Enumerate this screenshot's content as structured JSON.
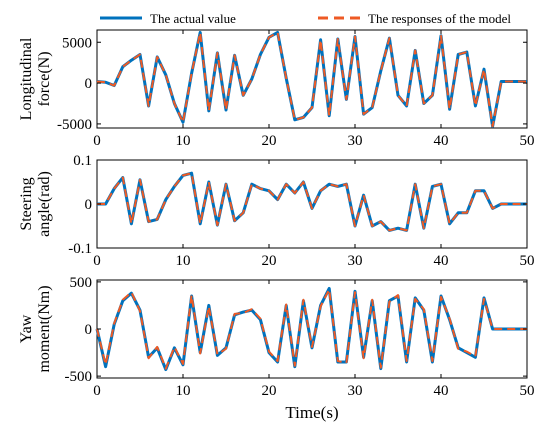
{
  "colors": {
    "actual": "#0072BD",
    "model": "#EE5A24",
    "axis": "#000000"
  },
  "legend": {
    "actual_label": "The actual value",
    "model_label": "The responses of the model",
    "placement": "top"
  },
  "xlabel": "Time(s)",
  "chart_data": [
    {
      "type": "line",
      "ylabel_lines": [
        "Longitudinal",
        "force(N)"
      ],
      "xlim": [
        0,
        50
      ],
      "ylim": [
        -5500,
        6500
      ],
      "xticks": [
        "0",
        "10",
        "20",
        "30",
        "40",
        "50"
      ],
      "yticks": [
        "5000",
        "0",
        "-5000"
      ],
      "ytick_values": [
        5000,
        0,
        -5000
      ],
      "series": [
        {
          "name": "The actual value",
          "x": [
            0,
            1,
            2,
            3,
            4,
            5,
            6,
            7,
            8,
            9,
            10,
            11,
            12,
            13,
            14,
            15,
            16,
            17,
            18,
            19,
            20,
            21,
            22,
            23,
            24,
            25,
            26,
            27,
            28,
            29,
            30,
            31,
            32,
            33,
            34,
            35,
            36,
            37,
            38,
            39,
            40,
            41,
            42,
            43,
            44,
            45,
            46,
            47,
            48,
            49,
            50
          ],
          "y": [
            200,
            100,
            -300,
            2000,
            2800,
            3500,
            -2800,
            3200,
            1000,
            -2500,
            -4800,
            1200,
            6200,
            -3400,
            3700,
            -3300,
            3400,
            -1500,
            500,
            3500,
            5600,
            6200,
            600,
            -4500,
            -4200,
            -3000,
            5300,
            -4000,
            5400,
            -2000,
            5700,
            -3800,
            -3000,
            1500,
            5500,
            -1500,
            -2800,
            4000,
            -2500,
            -1500,
            5800,
            -3200,
            3500,
            3800,
            -2800,
            1700,
            -5300,
            200,
            200,
            200,
            200
          ]
        },
        {
          "name": "The responses of the model",
          "x": [
            0,
            1,
            2,
            3,
            4,
            5,
            6,
            7,
            8,
            9,
            10,
            11,
            12,
            13,
            14,
            15,
            16,
            17,
            18,
            19,
            20,
            21,
            22,
            23,
            24,
            25,
            26,
            27,
            28,
            29,
            30,
            31,
            32,
            33,
            34,
            35,
            36,
            37,
            38,
            39,
            40,
            41,
            42,
            43,
            44,
            45,
            46,
            47,
            48,
            49,
            50
          ],
          "y": [
            200,
            100,
            -300,
            2000,
            2800,
            3500,
            -2800,
            3200,
            1000,
            -2500,
            -4800,
            1200,
            6200,
            -3400,
            3700,
            -3300,
            3400,
            -1500,
            500,
            3500,
            5600,
            6200,
            600,
            -4500,
            -4200,
            -3000,
            5300,
            -4000,
            5400,
            -2000,
            5700,
            -3800,
            -3000,
            1500,
            5500,
            -1500,
            -2800,
            4000,
            -2500,
            -1500,
            5800,
            -3200,
            3500,
            3800,
            -2800,
            1700,
            -5300,
            200,
            200,
            200,
            200
          ]
        }
      ]
    },
    {
      "type": "line",
      "ylabel_lines": [
        "Steering",
        "angle(rad)"
      ],
      "xlim": [
        0,
        50
      ],
      "ylim": [
        -0.1,
        0.1
      ],
      "xticks": [
        "0",
        "10",
        "20",
        "30",
        "40",
        "50"
      ],
      "yticks": [
        "0.1",
        "0",
        "-0.1"
      ],
      "ytick_values": [
        0.1,
        0,
        -0.1
      ],
      "series": [
        {
          "name": "The actual value",
          "x": [
            0,
            1,
            2,
            3,
            4,
            5,
            6,
            7,
            8,
            9,
            10,
            11,
            12,
            13,
            14,
            15,
            16,
            17,
            18,
            19,
            20,
            21,
            22,
            23,
            24,
            25,
            26,
            27,
            28,
            29,
            30,
            31,
            32,
            33,
            34,
            35,
            36,
            37,
            38,
            39,
            40,
            41,
            42,
            43,
            44,
            45,
            46,
            47,
            48,
            49,
            50
          ],
          "y": [
            0,
            0,
            0.035,
            0.06,
            -0.045,
            0.055,
            -0.04,
            -0.035,
            0.01,
            0.04,
            0.065,
            0.07,
            -0.045,
            0.05,
            -0.048,
            0.045,
            -0.038,
            -0.02,
            0.045,
            0.035,
            0.03,
            0.01,
            0.045,
            0.025,
            0.05,
            -0.01,
            0.03,
            0.045,
            0.04,
            0.045,
            -0.05,
            0.02,
            -0.05,
            -0.04,
            -0.06,
            -0.055,
            -0.06,
            0.045,
            -0.055,
            0.04,
            0.045,
            -0.045,
            -0.02,
            -0.02,
            0.03,
            0.03,
            -0.01,
            0,
            0,
            0,
            0
          ]
        },
        {
          "name": "The responses of the model",
          "x": [
            0,
            1,
            2,
            3,
            4,
            5,
            6,
            7,
            8,
            9,
            10,
            11,
            12,
            13,
            14,
            15,
            16,
            17,
            18,
            19,
            20,
            21,
            22,
            23,
            24,
            25,
            26,
            27,
            28,
            29,
            30,
            31,
            32,
            33,
            34,
            35,
            36,
            37,
            38,
            39,
            40,
            41,
            42,
            43,
            44,
            45,
            46,
            47,
            48,
            49,
            50
          ],
          "y": [
            0,
            0,
            0.035,
            0.06,
            -0.045,
            0.055,
            -0.04,
            -0.035,
            0.01,
            0.04,
            0.065,
            0.07,
            -0.045,
            0.05,
            -0.048,
            0.045,
            -0.038,
            -0.02,
            0.045,
            0.035,
            0.03,
            0.01,
            0.045,
            0.025,
            0.05,
            -0.01,
            0.03,
            0.045,
            0.04,
            0.045,
            -0.05,
            0.02,
            -0.05,
            -0.04,
            -0.06,
            -0.055,
            -0.06,
            0.045,
            -0.055,
            0.04,
            0.045,
            -0.045,
            -0.02,
            -0.02,
            0.03,
            0.03,
            -0.01,
            0,
            0,
            0,
            0
          ]
        }
      ]
    },
    {
      "type": "line",
      "ylabel_lines": [
        "Yaw",
        "moment(Nm)"
      ],
      "xlim": [
        0,
        50
      ],
      "ylim": [
        -520,
        520
      ],
      "xticks": [
        "0",
        "10",
        "20",
        "30",
        "40",
        "50"
      ],
      "yticks": [
        "500",
        "0",
        "-500"
      ],
      "ytick_values": [
        500,
        0,
        -500
      ],
      "series": [
        {
          "name": "The actual value",
          "x": [
            0,
            1,
            2,
            3,
            4,
            5,
            6,
            7,
            8,
            9,
            10,
            11,
            12,
            13,
            14,
            15,
            16,
            17,
            18,
            19,
            20,
            21,
            22,
            23,
            24,
            25,
            26,
            27,
            28,
            29,
            30,
            31,
            32,
            33,
            34,
            35,
            36,
            37,
            38,
            39,
            40,
            41,
            42,
            43,
            44,
            45,
            46,
            47,
            48,
            49,
            50
          ],
          "y": [
            0,
            -400,
            50,
            300,
            380,
            200,
            -300,
            -200,
            -430,
            -200,
            -380,
            350,
            -250,
            250,
            -280,
            -200,
            150,
            180,
            200,
            100,
            -250,
            -350,
            250,
            -400,
            300,
            -200,
            250,
            430,
            -350,
            -350,
            400,
            -300,
            300,
            -420,
            300,
            350,
            -350,
            330,
            200,
            -350,
            350,
            100,
            -200,
            -250,
            -300,
            330,
            0,
            0,
            0,
            0,
            0
          ]
        },
        {
          "name": "The responses of the model",
          "x": [
            0,
            1,
            2,
            3,
            4,
            5,
            6,
            7,
            8,
            9,
            10,
            11,
            12,
            13,
            14,
            15,
            16,
            17,
            18,
            19,
            20,
            21,
            22,
            23,
            24,
            25,
            26,
            27,
            28,
            29,
            30,
            31,
            32,
            33,
            34,
            35,
            36,
            37,
            38,
            39,
            40,
            41,
            42,
            43,
            44,
            45,
            46,
            47,
            48,
            49,
            50
          ],
          "y": [
            0,
            -380,
            60,
            310,
            390,
            190,
            -310,
            -190,
            -420,
            -190,
            -370,
            360,
            -260,
            240,
            -270,
            -210,
            160,
            170,
            210,
            110,
            -240,
            -340,
            260,
            -390,
            310,
            -190,
            240,
            420,
            -340,
            -360,
            390,
            -310,
            310,
            -410,
            290,
            360,
            -340,
            320,
            210,
            -340,
            340,
            110,
            -210,
            -240,
            -290,
            320,
            0,
            0,
            0,
            0,
            0
          ]
        }
      ]
    }
  ]
}
